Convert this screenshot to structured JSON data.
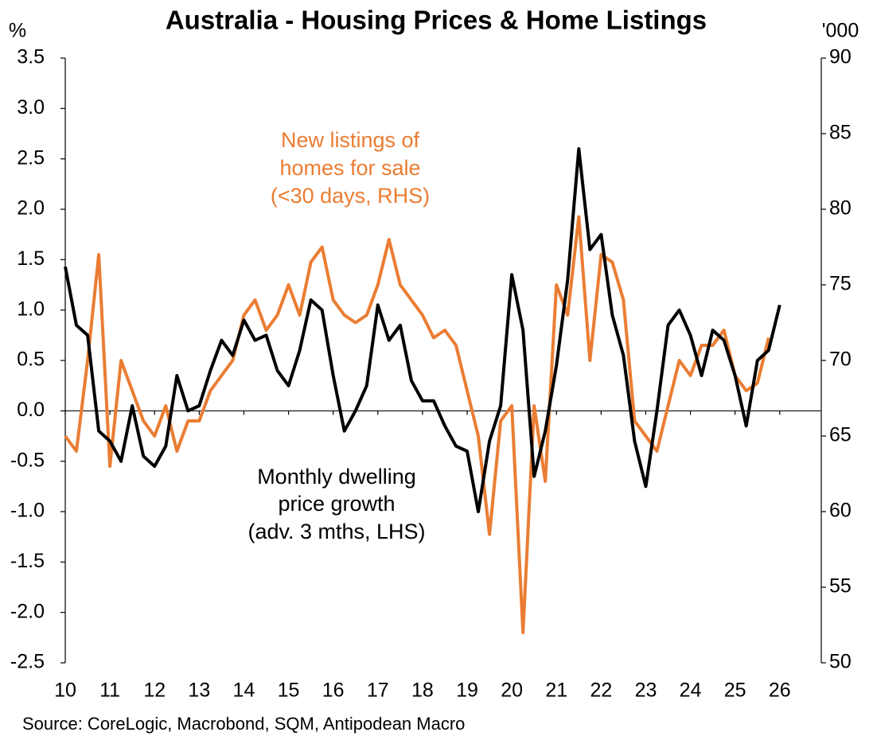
{
  "chart_data": {
    "type": "line",
    "title": "Australia - Housing Prices & Home Listings",
    "y_label": "%",
    "y2_label": "'000",
    "source": "Source: CoreLogic, Macrobond, SQM, Antipodean Macro",
    "x": [
      10,
      10.25,
      10.5,
      10.75,
      11,
      11.25,
      11.5,
      11.75,
      12,
      12.25,
      12.5,
      12.75,
      13,
      13.25,
      13.5,
      13.75,
      14,
      14.25,
      14.5,
      14.75,
      15,
      15.25,
      15.5,
      15.75,
      16,
      16.25,
      16.5,
      16.75,
      17,
      17.25,
      17.5,
      17.75,
      18,
      18.25,
      18.5,
      18.75,
      19,
      19.25,
      19.5,
      19.75,
      20,
      20.25,
      20.5,
      20.75,
      21,
      21.25,
      21.5,
      21.75,
      22,
      22.25,
      22.5,
      22.75,
      23,
      23.25,
      23.5,
      23.75,
      24,
      24.25,
      24.5,
      24.75,
      25,
      25.25,
      25.5,
      25.75,
      26
    ],
    "xlim": [
      10,
      26.93
    ],
    "xticks": [
      10,
      11,
      12,
      13,
      14,
      15,
      16,
      17,
      18,
      19,
      20,
      21,
      22,
      23,
      24,
      25,
      26
    ],
    "ylim": [
      -2.5,
      3.5
    ],
    "yticks": [
      {
        "value": -2.5,
        "label": "-2.5"
      },
      {
        "value": -2,
        "label": "-2.0"
      },
      -1.5,
      {
        "value": -1,
        "label": "-1.0"
      },
      -0.5,
      {
        "value": 0,
        "label": "0.0"
      },
      0.5,
      {
        "value": 1,
        "label": "1.0"
      },
      1.5,
      {
        "value": 2,
        "label": "2.0"
      },
      2.5,
      {
        "value": 3,
        "label": "3.0"
      },
      3.5
    ],
    "y2lim": [
      50,
      90
    ],
    "y2ticks": [
      50,
      55,
      60,
      65,
      70,
      75,
      80,
      85,
      90
    ],
    "series": [
      {
        "label": [
          "New listings of",
          "homes for sale",
          "(<30 days, RHS)"
        ],
        "color": "#ea7d33",
        "axis": "y2",
        "values": [
          65,
          64,
          70,
          77,
          63,
          70,
          68,
          66,
          65,
          67,
          64,
          66,
          66,
          68,
          69,
          70,
          73,
          74,
          72,
          73,
          75,
          73,
          76.5,
          77.5,
          74,
          73,
          72.5,
          73,
          75,
          78,
          75,
          74,
          73,
          71.5,
          72,
          71,
          68,
          65,
          58.5,
          66,
          67,
          52,
          67,
          62,
          75,
          73,
          79.5,
          70,
          77,
          76.5,
          74,
          66,
          65,
          64,
          67,
          70,
          69,
          71,
          71,
          72,
          69,
          68,
          68.5,
          71.5,
          null
        ]
      },
      {
        "label": [
          "Monthly dwelling",
          "price growth",
          "(adv. 3 mths, LHS)"
        ],
        "color": "#000000",
        "values": [
          1.43,
          0.85,
          0.75,
          -0.2,
          -0.3,
          -0.5,
          0.05,
          -0.45,
          -0.55,
          -0.35,
          0.35,
          0.0,
          0.05,
          0.4,
          0.7,
          0.55,
          0.9,
          0.7,
          0.75,
          0.4,
          0.25,
          0.6,
          1.1,
          1.0,
          0.35,
          -0.2,
          0.0,
          0.25,
          1.05,
          0.7,
          0.85,
          0.3,
          0.1,
          0.1,
          -0.15,
          -0.35,
          -0.4,
          -1.0,
          -0.3,
          0.05,
          1.35,
          0.8,
          -0.65,
          -0.2,
          0.45,
          1.3,
          2.6,
          1.6,
          1.75,
          0.95,
          0.55,
          -0.3,
          -0.75,
          0.0,
          0.85,
          1.0,
          0.75,
          0.35,
          0.8,
          0.7,
          0.35,
          -0.15,
          0.5,
          0.6,
          1.05
        ]
      }
    ]
  }
}
